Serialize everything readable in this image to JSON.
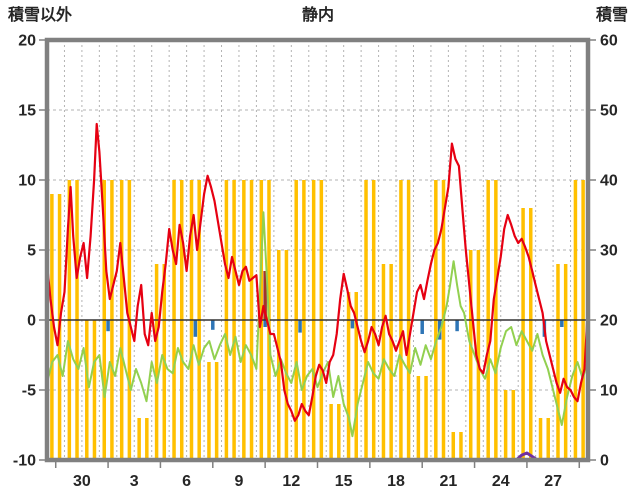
{
  "titles": {
    "left": "積雪以外",
    "center": "静内",
    "right": "積雪"
  },
  "chart_data": {
    "type": "line",
    "title": "静内",
    "left_axis": {
      "label": "積雪以外",
      "min": -10,
      "max": 20,
      "ticks": [
        20,
        15,
        10,
        5,
        0,
        -5,
        -10
      ]
    },
    "right_axis": {
      "label": "積雪",
      "min": 0,
      "max": 60,
      "ticks": [
        60,
        50,
        40,
        30,
        20,
        10,
        0
      ]
    },
    "x_axis": {
      "min": 0,
      "max": 31,
      "tick_labels": [
        "30",
        "3",
        "6",
        "9",
        "12",
        "15",
        "18",
        "21",
        "24",
        "27"
      ],
      "tick_positions": [
        2,
        5,
        8,
        11,
        14,
        17,
        20,
        23,
        26,
        29
      ],
      "day_grid_step": 1
    },
    "grid": {
      "on": true,
      "color": "#b3b3b3",
      "frame_color": "#808080",
      "zero_line_color": "#333333"
    },
    "legend": {
      "visible": false
    },
    "series": [
      {
        "name": "sunshine",
        "type": "bar",
        "axis": "right",
        "color": "#ffc000",
        "baseline": 0,
        "pair": true,
        "values": [
          38,
          40,
          20,
          40,
          40,
          6,
          28,
          40,
          40,
          14,
          40,
          40,
          40,
          30,
          40,
          40,
          8,
          24,
          40,
          28,
          40,
          12,
          40,
          4,
          30,
          40,
          10,
          36,
          6,
          28,
          40
        ]
      },
      {
        "name": "dark-red-bar",
        "type": "bar",
        "axis": "left",
        "color": "#a0342b",
        "baseline": 0,
        "pair": false,
        "values": [
          0,
          0,
          0,
          0,
          0,
          0,
          0,
          0,
          0,
          0,
          0,
          0,
          3.5,
          0,
          0,
          0,
          0,
          0,
          0,
          0,
          0,
          0,
          0,
          0,
          0,
          0,
          0,
          0,
          0,
          0,
          0
        ]
      },
      {
        "name": "precipitation",
        "type": "bar",
        "axis": "left",
        "color": "#2e75b6",
        "baseline": 0,
        "pair": false,
        "values": [
          0,
          0,
          0,
          -0.8,
          0,
          0,
          0,
          0,
          -1.2,
          -0.7,
          0,
          0,
          -0.5,
          0,
          -0.9,
          0,
          0,
          -0.6,
          0,
          0,
          0,
          -1.0,
          -1.4,
          -0.8,
          0,
          0,
          0,
          0,
          -1.2,
          -0.5,
          0
        ]
      },
      {
        "name": "temperature-low",
        "type": "line",
        "axis": "left",
        "color": "#92d050",
        "width": 2,
        "points": [
          [
            0,
            -4.5
          ],
          [
            0.3,
            -3.0
          ],
          [
            0.6,
            -2.5
          ],
          [
            0.9,
            -4.0
          ],
          [
            1.2,
            -1.5
          ],
          [
            1.5,
            -2.8
          ],
          [
            1.8,
            -3.5
          ],
          [
            2.1,
            -2.0
          ],
          [
            2.4,
            -4.8
          ],
          [
            2.7,
            -3.0
          ],
          [
            3.0,
            -2.5
          ],
          [
            3.3,
            -5.5
          ],
          [
            3.6,
            -3.0
          ],
          [
            3.9,
            -4.0
          ],
          [
            4.2,
            -2.0
          ],
          [
            4.5,
            -3.5
          ],
          [
            4.8,
            -5.0
          ],
          [
            5.1,
            -3.5
          ],
          [
            5.4,
            -4.5
          ],
          [
            5.7,
            -5.8
          ],
          [
            6.0,
            -3.0
          ],
          [
            6.3,
            -4.5
          ],
          [
            6.6,
            -2.5
          ],
          [
            6.9,
            -3.5
          ],
          [
            7.2,
            -3.8
          ],
          [
            7.5,
            -2.0
          ],
          [
            7.8,
            -3.0
          ],
          [
            8.1,
            -3.5
          ],
          [
            8.4,
            -1.8
          ],
          [
            8.7,
            -3.2
          ],
          [
            9.0,
            -2.0
          ],
          [
            9.3,
            -1.5
          ],
          [
            9.6,
            -2.8
          ],
          [
            9.9,
            -1.8
          ],
          [
            10.2,
            -1.0
          ],
          [
            10.5,
            -2.5
          ],
          [
            10.8,
            -1.2
          ],
          [
            11.1,
            -3.0
          ],
          [
            11.4,
            -1.8
          ],
          [
            11.7,
            -2.5
          ],
          [
            12.0,
            -3.5
          ],
          [
            12.2,
            2.0
          ],
          [
            12.4,
            7.7
          ],
          [
            12.6,
            3.0
          ],
          [
            12.8,
            -2.5
          ],
          [
            13.1,
            -4.0
          ],
          [
            13.4,
            -2.8
          ],
          [
            13.7,
            -3.8
          ],
          [
            14.0,
            -4.5
          ],
          [
            14.3,
            -3.0
          ],
          [
            14.6,
            -5.0
          ],
          [
            14.9,
            -4.0
          ],
          [
            15.2,
            -3.5
          ],
          [
            15.5,
            -4.8
          ],
          [
            15.8,
            -3.8
          ],
          [
            16.1,
            -3.0
          ],
          [
            16.4,
            -5.5
          ],
          [
            16.7,
            -4.0
          ],
          [
            17.0,
            -6.0
          ],
          [
            17.3,
            -7.0
          ],
          [
            17.5,
            -8.3
          ],
          [
            17.8,
            -6.0
          ],
          [
            18.1,
            -4.5
          ],
          [
            18.4,
            -3.0
          ],
          [
            18.7,
            -3.8
          ],
          [
            19.0,
            -4.2
          ],
          [
            19.3,
            -2.8
          ],
          [
            19.6,
            -3.5
          ],
          [
            19.9,
            -4.0
          ],
          [
            20.2,
            -2.5
          ],
          [
            20.5,
            -3.2
          ],
          [
            20.8,
            -3.8
          ],
          [
            21.1,
            -2.0
          ],
          [
            21.4,
            -3.2
          ],
          [
            21.7,
            -1.8
          ],
          [
            22.0,
            -2.8
          ],
          [
            22.3,
            -1.5
          ],
          [
            22.6,
            -0.5
          ],
          [
            22.9,
            1.0
          ],
          [
            23.1,
            2.5
          ],
          [
            23.3,
            4.2
          ],
          [
            23.5,
            2.5
          ],
          [
            23.7,
            1.0
          ],
          [
            23.9,
            0.5
          ],
          [
            24.2,
            -1.5
          ],
          [
            24.5,
            -2.5
          ],
          [
            24.8,
            -3.5
          ],
          [
            25.1,
            -4.2
          ],
          [
            25.4,
            -2.8
          ],
          [
            25.7,
            -3.8
          ],
          [
            26.0,
            -2.0
          ],
          [
            26.3,
            -0.8
          ],
          [
            26.6,
            -0.5
          ],
          [
            26.9,
            -1.8
          ],
          [
            27.2,
            -0.8
          ],
          [
            27.5,
            -1.5
          ],
          [
            27.8,
            -2.2
          ],
          [
            28.1,
            -1.0
          ],
          [
            28.4,
            -2.5
          ],
          [
            28.7,
            -3.5
          ],
          [
            29.0,
            -5.0
          ],
          [
            29.2,
            -6.0
          ],
          [
            29.5,
            -7.5
          ],
          [
            29.8,
            -5.5
          ],
          [
            30.1,
            -4.0
          ],
          [
            30.4,
            -3.0
          ],
          [
            30.7,
            -4.2
          ],
          [
            31.0,
            -2.8
          ]
        ]
      },
      {
        "name": "temperature-high",
        "type": "line",
        "axis": "left",
        "color": "#e60012",
        "width": 2.2,
        "points": [
          [
            0,
            4
          ],
          [
            0.2,
            1.5
          ],
          [
            0.4,
            -0.5
          ],
          [
            0.6,
            -1.8
          ],
          [
            0.8,
            0.5
          ],
          [
            1.0,
            2.0
          ],
          [
            1.2,
            6.5
          ],
          [
            1.35,
            9.5
          ],
          [
            1.5,
            6.0
          ],
          [
            1.7,
            3.0
          ],
          [
            1.9,
            4.5
          ],
          [
            2.1,
            5.5
          ],
          [
            2.3,
            3.0
          ],
          [
            2.5,
            6.0
          ],
          [
            2.7,
            10.0
          ],
          [
            2.85,
            14.0
          ],
          [
            3.0,
            12.0
          ],
          [
            3.2,
            8.0
          ],
          [
            3.4,
            3.5
          ],
          [
            3.6,
            1.5
          ],
          [
            3.8,
            2.5
          ],
          [
            4.0,
            3.5
          ],
          [
            4.2,
            5.5
          ],
          [
            4.4,
            3.0
          ],
          [
            4.6,
            0.5
          ],
          [
            4.8,
            -0.5
          ],
          [
            5.0,
            -1.5
          ],
          [
            5.2,
            1.0
          ],
          [
            5.4,
            2.5
          ],
          [
            5.6,
            -1.0
          ],
          [
            5.8,
            -1.8
          ],
          [
            6.0,
            0.5
          ],
          [
            6.2,
            -1.5
          ],
          [
            6.4,
            -0.5
          ],
          [
            6.6,
            2.0
          ],
          [
            6.8,
            4.0
          ],
          [
            7.0,
            6.5
          ],
          [
            7.2,
            5.0
          ],
          [
            7.4,
            4.0
          ],
          [
            7.6,
            6.8
          ],
          [
            7.8,
            5.5
          ],
          [
            8.0,
            3.5
          ],
          [
            8.2,
            6.0
          ],
          [
            8.4,
            7.5
          ],
          [
            8.6,
            5.0
          ],
          [
            8.8,
            7.0
          ],
          [
            9.0,
            9.0
          ],
          [
            9.2,
            10.3
          ],
          [
            9.4,
            9.5
          ],
          [
            9.6,
            8.5
          ],
          [
            9.8,
            7.0
          ],
          [
            10.0,
            5.5
          ],
          [
            10.2,
            4.0
          ],
          [
            10.4,
            3.0
          ],
          [
            10.6,
            4.5
          ],
          [
            10.8,
            3.5
          ],
          [
            11.0,
            2.5
          ],
          [
            11.2,
            3.5
          ],
          [
            11.4,
            3.8
          ],
          [
            11.6,
            2.8
          ],
          [
            11.8,
            3.0
          ],
          [
            12.0,
            3.2
          ],
          [
            12.2,
            -0.5
          ],
          [
            12.4,
            1.0
          ],
          [
            12.6,
            0.0
          ],
          [
            12.8,
            -1.0
          ],
          [
            13.0,
            -1.0
          ],
          [
            13.2,
            -2.0
          ],
          [
            13.4,
            -3.0
          ],
          [
            13.6,
            -5.0
          ],
          [
            13.8,
            -6.0
          ],
          [
            14.0,
            -6.5
          ],
          [
            14.2,
            -7.2
          ],
          [
            14.4,
            -6.8
          ],
          [
            14.6,
            -6.0
          ],
          [
            14.8,
            -6.5
          ],
          [
            15.0,
            -6.8
          ],
          [
            15.2,
            -5.5
          ],
          [
            15.4,
            -4.0
          ],
          [
            15.6,
            -3.2
          ],
          [
            15.8,
            -3.6
          ],
          [
            16.0,
            -4.5
          ],
          [
            16.2,
            -3.0
          ],
          [
            16.4,
            -2.5
          ],
          [
            16.6,
            -1.0
          ],
          [
            16.8,
            1.5
          ],
          [
            17.0,
            3.3
          ],
          [
            17.2,
            2.2
          ],
          [
            17.4,
            1.0
          ],
          [
            17.6,
            0.5
          ],
          [
            17.8,
            -0.5
          ],
          [
            18.0,
            -1.5
          ],
          [
            18.2,
            -2.3
          ],
          [
            18.4,
            -1.5
          ],
          [
            18.6,
            -0.5
          ],
          [
            18.8,
            -1.0
          ],
          [
            19.0,
            -1.8
          ],
          [
            19.2,
            -0.5
          ],
          [
            19.4,
            0.3
          ],
          [
            19.6,
            -1.0
          ],
          [
            19.8,
            -1.5
          ],
          [
            20.0,
            -2.2
          ],
          [
            20.2,
            -1.5
          ],
          [
            20.4,
            -0.8
          ],
          [
            20.6,
            -2.5
          ],
          [
            20.8,
            -1.0
          ],
          [
            21.0,
            0.5
          ],
          [
            21.2,
            2.0
          ],
          [
            21.4,
            2.5
          ],
          [
            21.6,
            1.5
          ],
          [
            21.8,
            2.8
          ],
          [
            22.0,
            4.0
          ],
          [
            22.2,
            5.0
          ],
          [
            22.4,
            5.5
          ],
          [
            22.6,
            6.5
          ],
          [
            22.8,
            8.0
          ],
          [
            23.0,
            9.5
          ],
          [
            23.2,
            12.6
          ],
          [
            23.4,
            11.5
          ],
          [
            23.6,
            11.0
          ],
          [
            23.8,
            8.0
          ],
          [
            24.0,
            5.0
          ],
          [
            24.2,
            2.5
          ],
          [
            24.4,
            0.0
          ],
          [
            24.6,
            -2.5
          ],
          [
            24.8,
            -3.5
          ],
          [
            25.0,
            -3.8
          ],
          [
            25.2,
            -2.5
          ],
          [
            25.4,
            -1.5
          ],
          [
            25.6,
            1.5
          ],
          [
            25.8,
            3.0
          ],
          [
            26.0,
            4.5
          ],
          [
            26.2,
            6.5
          ],
          [
            26.4,
            7.5
          ],
          [
            26.6,
            6.8
          ],
          [
            26.8,
            6.0
          ],
          [
            27.0,
            5.5
          ],
          [
            27.2,
            5.8
          ],
          [
            27.4,
            5.2
          ],
          [
            27.6,
            4.5
          ],
          [
            27.8,
            3.5
          ],
          [
            28.0,
            2.5
          ],
          [
            28.2,
            1.5
          ],
          [
            28.4,
            0.5
          ],
          [
            28.6,
            -1.5
          ],
          [
            28.8,
            -2.5
          ],
          [
            29.0,
            -3.5
          ],
          [
            29.2,
            -4.5
          ],
          [
            29.4,
            -5.2
          ],
          [
            29.6,
            -4.2
          ],
          [
            29.8,
            -4.8
          ],
          [
            30.0,
            -5.0
          ],
          [
            30.2,
            -5.5
          ],
          [
            30.4,
            -5.8
          ],
          [
            30.6,
            -4.5
          ],
          [
            30.8,
            -3.5
          ],
          [
            31.0,
            1.0
          ]
        ]
      },
      {
        "name": "snow-depth",
        "type": "line",
        "axis": "right",
        "color": "#7030a0",
        "width": 3,
        "points": [
          [
            0,
            0
          ],
          [
            26.9,
            0
          ],
          [
            27.2,
            0.7
          ],
          [
            27.5,
            1.0
          ],
          [
            27.8,
            0.5
          ],
          [
            28.1,
            0
          ],
          [
            31,
            0
          ]
        ]
      }
    ]
  }
}
